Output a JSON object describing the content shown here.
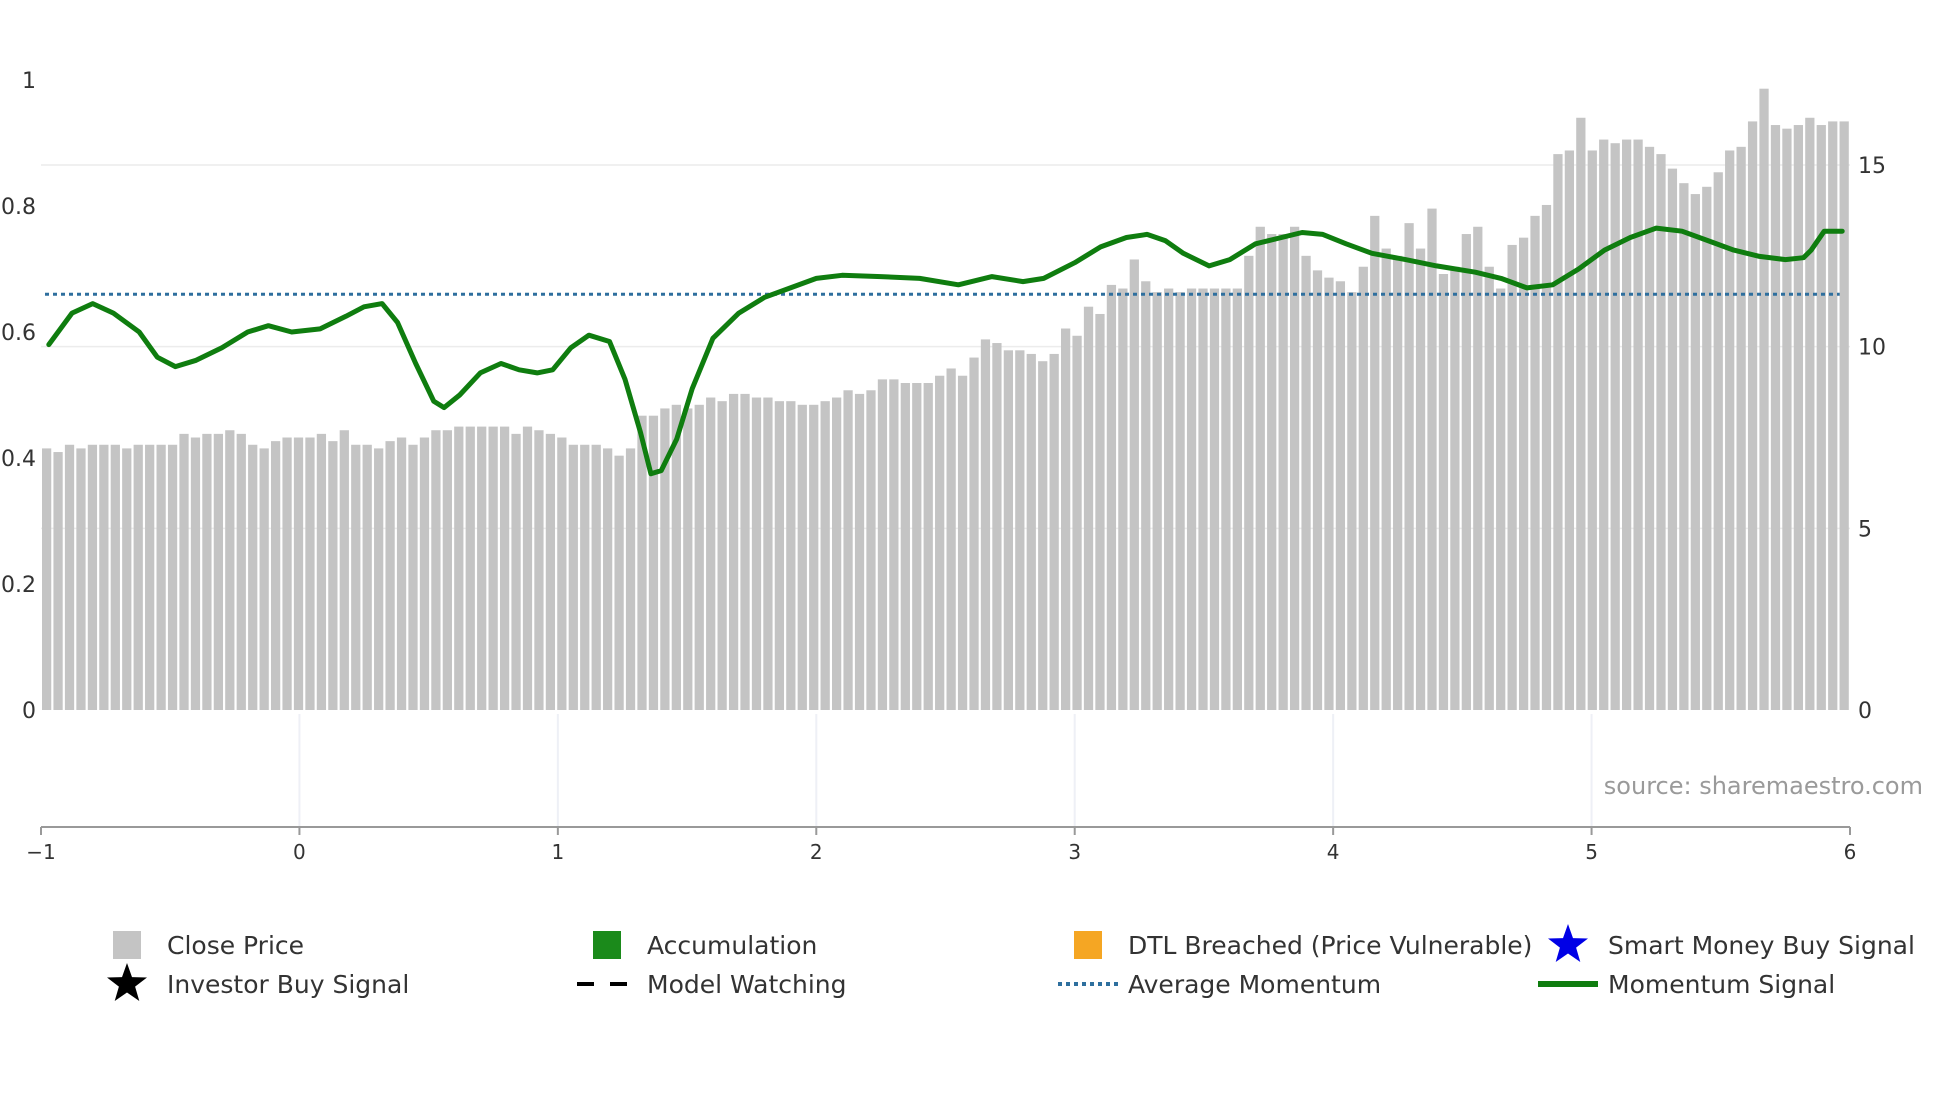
{
  "chart_data": {
    "type": "bar",
    "title": "",
    "source": "source: sharemaestro.com",
    "x_axis": {
      "range": [
        -1,
        6
      ],
      "ticks": [
        "−1",
        "0",
        "1",
        "2",
        "3",
        "4",
        "5",
        "6"
      ]
    },
    "y_left": {
      "range": [
        0,
        1
      ],
      "ticks": [
        {
          "v": 0,
          "label": "0"
        },
        {
          "v": 0.2,
          "label": "0.2"
        },
        {
          "v": 0.4,
          "label": "0.4"
        },
        {
          "v": 0.6,
          "label": "0.6"
        },
        {
          "v": 0.8,
          "label": "0.8"
        },
        {
          "v": 1,
          "label": "1"
        }
      ]
    },
    "y_right": {
      "range": [
        0,
        18
      ],
      "ticks": [
        {
          "v": 0,
          "label": "0"
        },
        {
          "v": 5,
          "label": "5"
        },
        {
          "v": 10,
          "label": "10"
        },
        {
          "v": 15,
          "label": "15"
        }
      ]
    },
    "colors": {
      "close_price": "#c4c4c4",
      "accumulation": "#1b8a1b",
      "momentum": "#0f7d0f",
      "average_momentum": "#2e6f9e",
      "dtl": "#f5a623",
      "smart_money": "#0000e6",
      "investor": "#000000",
      "gridline": "#ececec",
      "axis": "#999999"
    },
    "series": [
      {
        "name": "Close Price",
        "axis": "right",
        "values": [
          7.2,
          7.1,
          7.3,
          7.2,
          7.3,
          7.3,
          7.3,
          7.2,
          7.3,
          7.3,
          7.3,
          7.3,
          7.6,
          7.5,
          7.6,
          7.6,
          7.7,
          7.6,
          7.3,
          7.2,
          7.4,
          7.5,
          7.5,
          7.5,
          7.6,
          7.4,
          7.7,
          7.3,
          7.3,
          7.2,
          7.4,
          7.5,
          7.3,
          7.5,
          7.7,
          7.7,
          7.8,
          7.8,
          7.8,
          7.8,
          7.8,
          7.6,
          7.8,
          7.7,
          7.6,
          7.5,
          7.3,
          7.3,
          7.3,
          7.2,
          7.0,
          7.2,
          8.1,
          8.1,
          8.3,
          8.4,
          8.3,
          8.4,
          8.6,
          8.5,
          8.7,
          8.7,
          8.6,
          8.6,
          8.5,
          8.5,
          8.4,
          8.4,
          8.5,
          8.6,
          8.8,
          8.7,
          8.8,
          9.1,
          9.1,
          9.0,
          9.0,
          9.0,
          9.2,
          9.4,
          9.2,
          9.7,
          10.2,
          10.1,
          9.9,
          9.9,
          9.8,
          9.6,
          9.8,
          10.5,
          10.3,
          11.1,
          10.9,
          11.7,
          11.6,
          12.4,
          11.8,
          11.5,
          11.6,
          11.5,
          11.6,
          11.6,
          11.6,
          11.6,
          11.6,
          12.5,
          13.3,
          13.1,
          13.1,
          13.3,
          12.5,
          12.1,
          11.9,
          11.8,
          11.5,
          12.2,
          13.6,
          12.7,
          12.5,
          13.4,
          12.7,
          13.8,
          12.0,
          12.2,
          13.1,
          13.3,
          12.2,
          11.6,
          12.8,
          13.0,
          13.6,
          13.9,
          15.3,
          15.4,
          16.3,
          15.4,
          15.7,
          15.6,
          15.7,
          15.7,
          15.5,
          15.3,
          14.9,
          14.5,
          14.2,
          14.4,
          14.8,
          15.4,
          15.5,
          16.2,
          17.1,
          16.1,
          16.0,
          16.1,
          16.3,
          16.1,
          16.2,
          16.2
        ]
      },
      {
        "name": "Momentum Signal",
        "axis": "left",
        "points": [
          [
            -0.97,
            0.58
          ],
          [
            -0.88,
            0.63
          ],
          [
            -0.8,
            0.645
          ],
          [
            -0.72,
            0.63
          ],
          [
            -0.62,
            0.6
          ],
          [
            -0.55,
            0.56
          ],
          [
            -0.48,
            0.545
          ],
          [
            -0.4,
            0.555
          ],
          [
            -0.3,
            0.575
          ],
          [
            -0.2,
            0.6
          ],
          [
            -0.12,
            0.61
          ],
          [
            -0.03,
            0.6
          ],
          [
            0.08,
            0.605
          ],
          [
            0.18,
            0.625
          ],
          [
            0.25,
            0.64
          ],
          [
            0.32,
            0.645
          ],
          [
            0.38,
            0.615
          ],
          [
            0.45,
            0.55
          ],
          [
            0.52,
            0.49
          ],
          [
            0.56,
            0.48
          ],
          [
            0.62,
            0.5
          ],
          [
            0.7,
            0.535
          ],
          [
            0.78,
            0.55
          ],
          [
            0.85,
            0.54
          ],
          [
            0.92,
            0.535
          ],
          [
            0.98,
            0.54
          ],
          [
            1.05,
            0.575
          ],
          [
            1.12,
            0.595
          ],
          [
            1.2,
            0.585
          ],
          [
            1.26,
            0.525
          ],
          [
            1.32,
            0.44
          ],
          [
            1.36,
            0.375
          ],
          [
            1.4,
            0.38
          ],
          [
            1.46,
            0.43
          ],
          [
            1.52,
            0.51
          ],
          [
            1.6,
            0.59
          ],
          [
            1.7,
            0.63
          ],
          [
            1.8,
            0.655
          ],
          [
            1.9,
            0.67
          ],
          [
            2.0,
            0.685
          ],
          [
            2.1,
            0.69
          ],
          [
            2.25,
            0.688
          ],
          [
            2.4,
            0.685
          ],
          [
            2.55,
            0.675
          ],
          [
            2.68,
            0.688
          ],
          [
            2.8,
            0.68
          ],
          [
            2.88,
            0.685
          ],
          [
            3.0,
            0.71
          ],
          [
            3.1,
            0.735
          ],
          [
            3.2,
            0.75
          ],
          [
            3.28,
            0.755
          ],
          [
            3.35,
            0.745
          ],
          [
            3.42,
            0.725
          ],
          [
            3.52,
            0.705
          ],
          [
            3.6,
            0.715
          ],
          [
            3.7,
            0.74
          ],
          [
            3.8,
            0.75
          ],
          [
            3.88,
            0.758
          ],
          [
            3.96,
            0.755
          ],
          [
            4.05,
            0.74
          ],
          [
            4.15,
            0.725
          ],
          [
            4.28,
            0.715
          ],
          [
            4.4,
            0.705
          ],
          [
            4.55,
            0.695
          ],
          [
            4.65,
            0.685
          ],
          [
            4.75,
            0.67
          ],
          [
            4.85,
            0.675
          ],
          [
            4.95,
            0.7
          ],
          [
            5.05,
            0.73
          ],
          [
            5.15,
            0.75
          ],
          [
            5.25,
            0.765
          ],
          [
            5.35,
            0.76
          ],
          [
            5.45,
            0.745
          ],
          [
            5.55,
            0.73
          ],
          [
            5.65,
            0.72
          ],
          [
            5.75,
            0.715
          ],
          [
            5.82,
            0.718
          ],
          [
            5.85,
            0.73
          ],
          [
            5.9,
            0.76
          ],
          [
            5.97,
            0.76
          ]
        ]
      },
      {
        "name": "Average Momentum",
        "axis": "left",
        "value": 0.66
      }
    ],
    "legend": [
      {
        "label": "Close Price",
        "marker": "gray-square-icon"
      },
      {
        "label": "Accumulation",
        "marker": "green-square-icon"
      },
      {
        "label": "DTL Breached (Price Vulnerable)",
        "marker": "orange-square-icon"
      },
      {
        "label": "Smart Money Buy Signal",
        "marker": "blue-star-icon"
      },
      {
        "label": "Investor Buy Signal",
        "marker": "black-star-icon"
      },
      {
        "label": "Model Watching",
        "marker": "black-dashed-line-icon"
      },
      {
        "label": "Average Momentum",
        "marker": "blue-dotted-line-icon"
      },
      {
        "label": "Momentum Signal",
        "marker": "green-solid-line-icon"
      }
    ]
  }
}
